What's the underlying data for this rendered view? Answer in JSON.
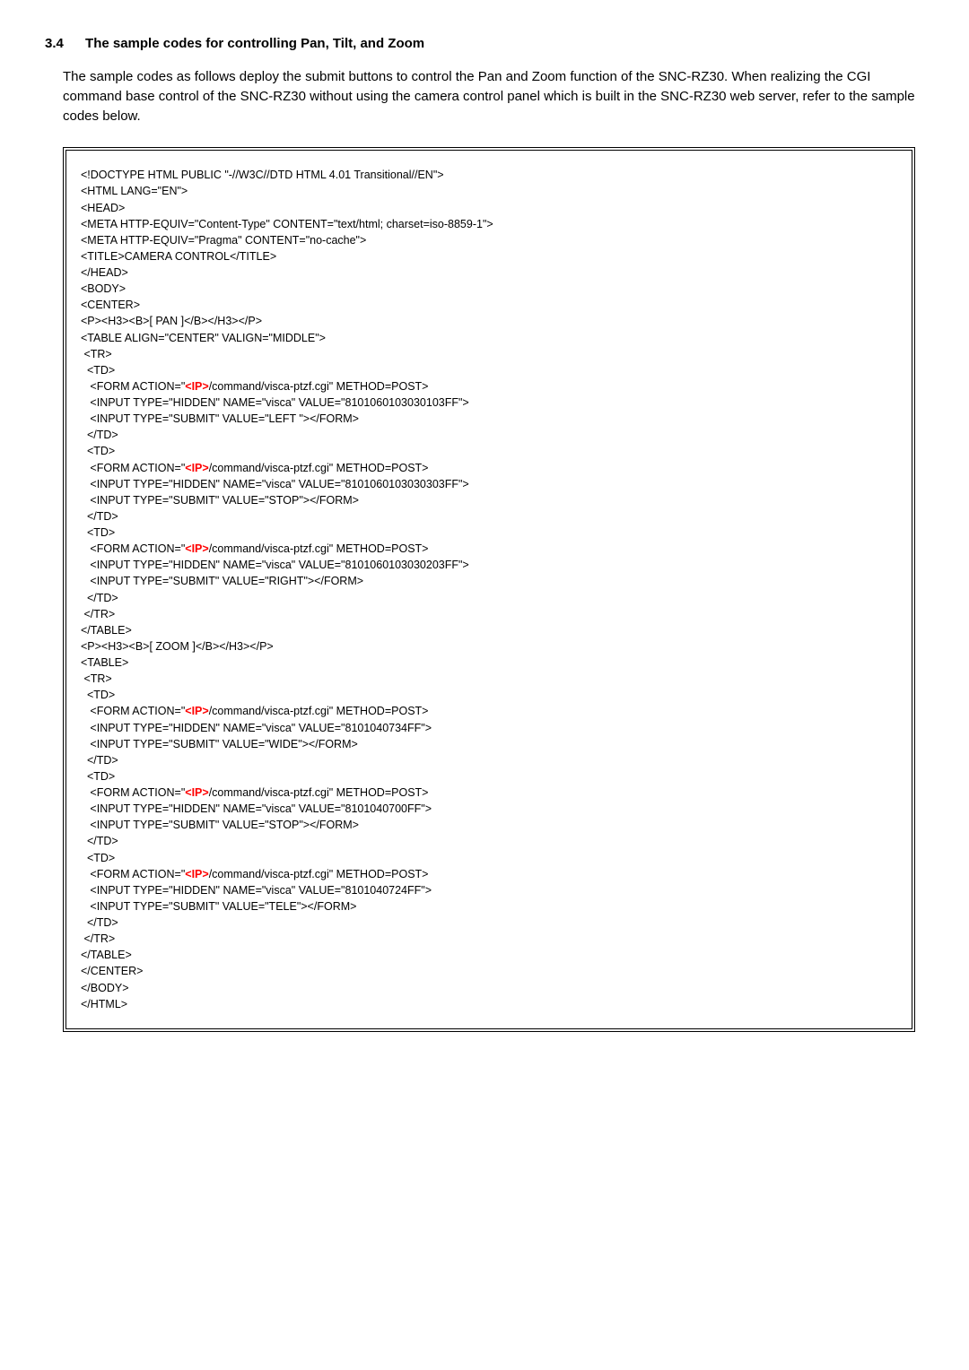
{
  "heading": {
    "number": "3.4",
    "title": "The sample codes for controlling Pan, Tilt, and Zoom"
  },
  "paragraph": "The sample codes as follows deploy the submit buttons to control the Pan and Zoom function of the SNC-RZ30. When realizing the CGI command base control of the SNC-RZ30 without using the camera control panel which is built in the SNC-RZ30 web server, refer to the sample codes below.",
  "code": {
    "ip_text": "<IP>",
    "ip_color": "#ff0000",
    "lines": [
      "<!DOCTYPE HTML PUBLIC \"-//W3C//DTD HTML 4.01 Transitional//EN\">",
      "<HTML LANG=\"EN\">",
      "<HEAD>",
      "<META HTTP-EQUIV=\"Content-Type\" CONTENT=\"text/html; charset=iso-8859-1\">",
      "<META HTTP-EQUIV=\"Pragma\" CONTENT=\"no-cache\">",
      "<TITLE>CAMERA CONTROL</TITLE>",
      "</HEAD>",
      "<BODY>",
      "<CENTER>",
      "<P><H3><B>[ PAN ]</B></H3></P>",
      "<TABLE ALIGN=\"CENTER\" VALIGN=\"MIDDLE\">",
      " <TR>",
      "  <TD>",
      "   <FORM ACTION=\"{{IP}}/command/visca-ptzf.cgi\" METHOD=POST>",
      "   <INPUT TYPE=\"HIDDEN\" NAME=\"visca\" VALUE=\"8101060103030103FF\">",
      "   <INPUT TYPE=\"SUBMIT\" VALUE=\"LEFT \"></FORM>",
      "  </TD>",
      "  <TD>",
      "   <FORM ACTION=\"{{IP}}/command/visca-ptzf.cgi\" METHOD=POST>",
      "   <INPUT TYPE=\"HIDDEN\" NAME=\"visca\" VALUE=\"8101060103030303FF\">",
      "   <INPUT TYPE=\"SUBMIT\" VALUE=\"STOP\"></FORM>",
      "  </TD>",
      "  <TD>",
      "   <FORM ACTION=\"{{IP}}/command/visca-ptzf.cgi\" METHOD=POST>",
      "   <INPUT TYPE=\"HIDDEN\" NAME=\"visca\" VALUE=\"8101060103030203FF\">",
      "   <INPUT TYPE=\"SUBMIT\" VALUE=\"RIGHT\"></FORM>",
      "  </TD>",
      " </TR>",
      "</TABLE>",
      "<P><H3><B>[ ZOOM ]</B></H3></P>",
      "<TABLE>",
      " <TR>",
      "  <TD>",
      "   <FORM ACTION=\"{{IP}}/command/visca-ptzf.cgi\" METHOD=POST>",
      "   <INPUT TYPE=\"HIDDEN\" NAME=\"visca\" VALUE=\"8101040734FF\">",
      "   <INPUT TYPE=\"SUBMIT\" VALUE=\"WIDE\"></FORM>",
      "  </TD>",
      "  <TD>",
      "   <FORM ACTION=\"{{IP}}/command/visca-ptzf.cgi\" METHOD=POST>",
      "   <INPUT TYPE=\"HIDDEN\" NAME=\"visca\" VALUE=\"8101040700FF\">",
      "   <INPUT TYPE=\"SUBMIT\" VALUE=\"STOP\"></FORM>",
      "  </TD>",
      "  <TD>",
      "   <FORM ACTION=\"{{IP}}/command/visca-ptzf.cgi\" METHOD=POST>",
      "   <INPUT TYPE=\"HIDDEN\" NAME=\"visca\" VALUE=\"8101040724FF\">",
      "   <INPUT TYPE=\"SUBMIT\" VALUE=\"TELE\"></FORM>",
      "  </TD>",
      " </TR>",
      "</TABLE>",
      "</CENTER>",
      "</BODY>",
      "</HTML>"
    ]
  },
  "style": {
    "body_color": "#000000",
    "body_bg": "#ffffff",
    "heading_fontsize": 15,
    "paragraph_fontsize": 15,
    "code_fontsize": 12.5,
    "code_border": "4px double #000000"
  }
}
